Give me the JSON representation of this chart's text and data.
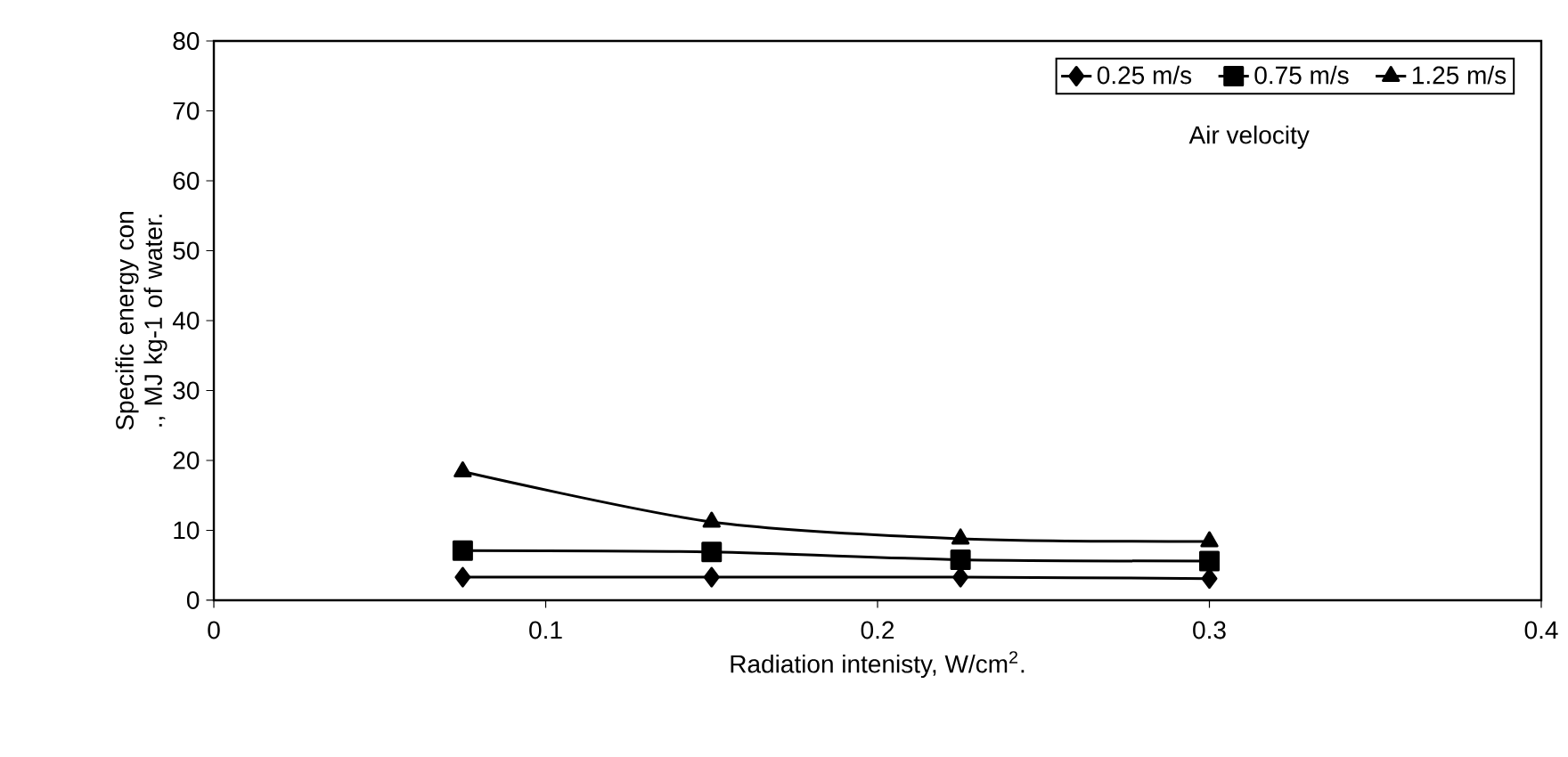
{
  "chart_data": {
    "type": "line",
    "xlabel": "Radiation intenisty, W/cm$^{2}$.",
    "ylabel": "Specific energy con ., MJ kg-1 of water.",
    "legend_title": "Air velocity",
    "x": [
      0.075,
      0.15,
      0.225,
      0.3
    ],
    "xlim": [
      0,
      0.4
    ],
    "xticks": [
      0,
      0.1,
      0.2,
      0.3,
      0.4
    ],
    "ylim": [
      0,
      80
    ],
    "yticks": [
      0,
      10,
      20,
      30,
      40,
      50,
      60,
      70,
      80
    ],
    "legend": "top right",
    "grid": false,
    "line_style": "solid",
    "series": [
      {
        "name": "0.25 m/s",
        "color": "#000000",
        "marker": "diamond",
        "values": [
          3.3,
          3.3,
          3.3,
          3.1
        ]
      },
      {
        "name": "0.75 m/s",
        "color": "#000000",
        "marker": "square",
        "values": [
          7.1,
          6.9,
          5.8,
          5.6
        ]
      },
      {
        "name": "1.25 m/s",
        "color": "#000000",
        "marker": "triangle",
        "values": [
          18.4,
          11.2,
          8.8,
          8.4
        ]
      }
    ]
  }
}
